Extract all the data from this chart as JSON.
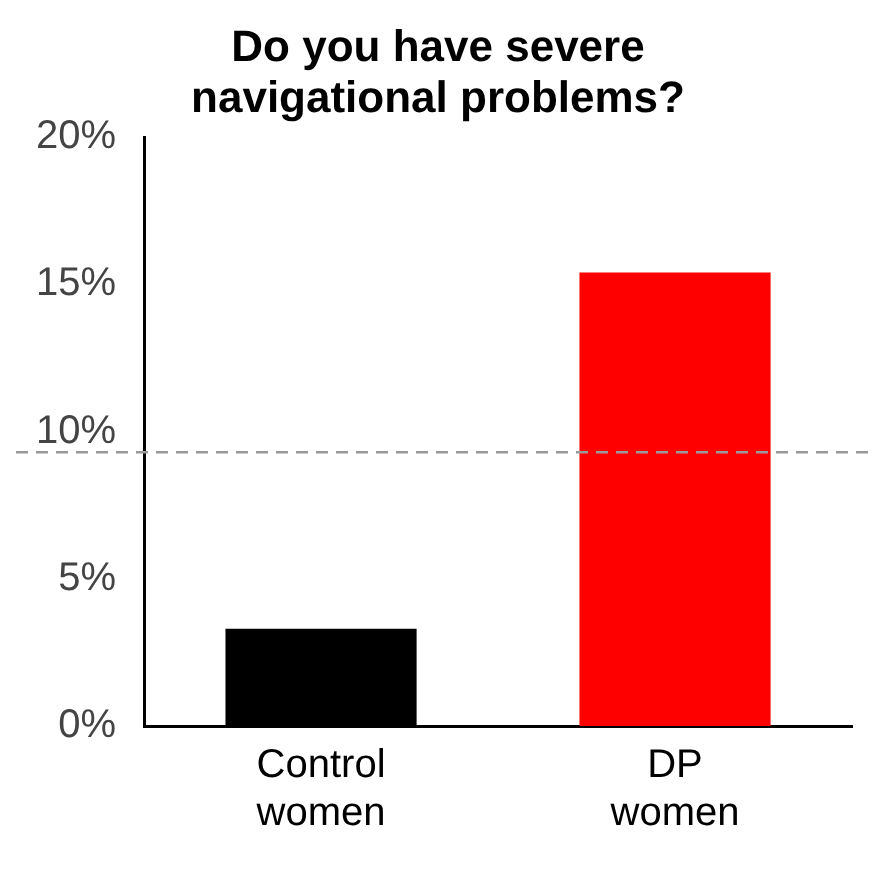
{
  "chart_data": {
    "type": "bar",
    "title": "Do you have severe navigational problems?",
    "categories": [
      "Control women",
      "DP women"
    ],
    "values": [
      3.3,
      15.4
    ],
    "colors": [
      "#000000",
      "#ff0000"
    ],
    "ylim": [
      0,
      20
    ],
    "yticks": [
      {
        "value": 0,
        "label": "0%"
      },
      {
        "value": 5,
        "label": "5%"
      },
      {
        "value": 10,
        "label": "10%"
      },
      {
        "value": 15,
        "label": "15%"
      },
      {
        "value": 20,
        "label": "20%"
      }
    ],
    "ref_lines": [
      {
        "axis": "y",
        "value": 9.3,
        "color": "#999999",
        "line_style": "dashed"
      }
    ],
    "grid": false,
    "legend": false
  }
}
